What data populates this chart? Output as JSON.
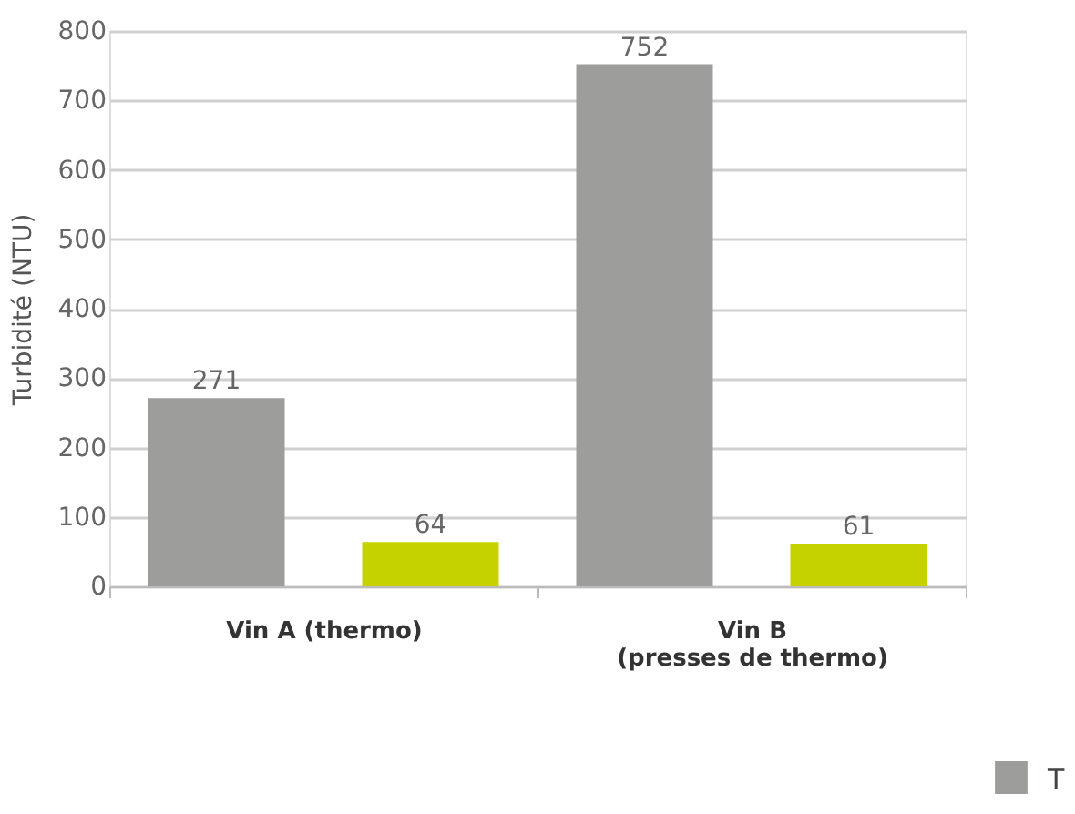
{
  "chart_data": {
    "type": "bar",
    "ylabel": "Turbidité (NTU)",
    "categories": [
      "Vin A (thermo)",
      "Vin B\n(presses de thermo)"
    ],
    "series": [
      {
        "name": "T",
        "color": "#9d9d9c",
        "values": [
          271,
          752
        ]
      },
      {
        "color": "#c5d200",
        "values": [
          64,
          61
        ]
      }
    ],
    "ylim": [
      0,
      800
    ],
    "yticks": [
      0,
      100,
      200,
      300,
      400,
      500,
      600,
      700,
      800
    ],
    "grid": "y",
    "data_labels": true,
    "legend": "bottom right"
  }
}
